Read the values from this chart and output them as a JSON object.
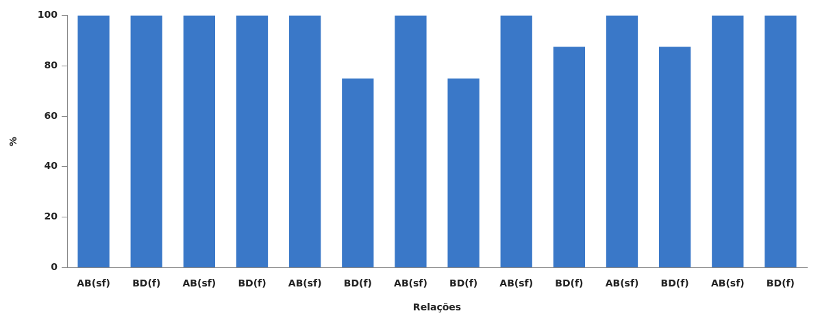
{
  "chart_data": {
    "type": "bar",
    "xlabel": "Relações",
    "ylabel": "%",
    "categories": [
      "AB(sf)",
      "BD(f)",
      "AB(sf)",
      "BD(f)",
      "AB(sf)",
      "BD(f)",
      "AB(sf)",
      "BD(f)",
      "AB(sf)",
      "BD(f)",
      "AB(sf)",
      "BD(f)",
      "AB(sf)",
      "BD(f)"
    ],
    "values": [
      100,
      100,
      100,
      100,
      100,
      75,
      100,
      75,
      100,
      87.5,
      100,
      87.5,
      100,
      100
    ],
    "color": "#3a78c8",
    "ylim": [
      0,
      100
    ],
    "yticks": [
      0,
      20,
      40,
      60,
      80,
      100
    ],
    "grid": false,
    "legend": false
  }
}
